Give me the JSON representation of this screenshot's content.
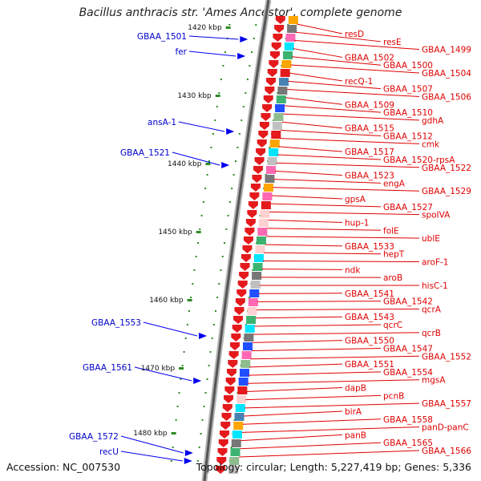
{
  "title": "Bacillus anthracis str. 'Ames Ancestor', complete genome",
  "footer": {
    "accession": "Accession: NC_007530",
    "topology": "Topology: circular; Length: 5,227,419 bp; Genes: 5,336"
  },
  "colors": {
    "backbone": "#8c8c8c",
    "forward_gene": "#e41a1c",
    "reverse_gene": "#0000ee",
    "tick": "#2e8b22",
    "right_label": "#e00000",
    "left_label": "#0000cc"
  },
  "scale_ticks": [
    "1420 kbp",
    "1430 kbp",
    "1440 kbp",
    "1450 kbp",
    "1460 kbp",
    "1470 kbp",
    "1480 kbp"
  ],
  "left_genes": [
    "GBAA_1501",
    "fer",
    "ansA-1",
    "GBAA_1521",
    "GBAA_1553",
    "GBAA_1561",
    "GBAA_1572",
    "recU"
  ],
  "right_genes": [
    "resD",
    "resE",
    "GBAA_1499",
    "GBAA_1502",
    "GBAA_1500",
    "GBAA_1504",
    "recQ-1",
    "GBAA_1507",
    "GBAA_1506",
    "GBAA_1509",
    "GBAA_1510",
    "gdhA",
    "GBAA_1515",
    "GBAA_1512",
    "cmk",
    "GBAA_1517",
    "GBAA_1520-rpsA",
    "GBAA_1522",
    "GBAA_1523",
    "engA",
    "GBAA_1529",
    "gpsA",
    "GBAA_1527",
    "spoIVA",
    "hup-1",
    "folE",
    "ublE",
    "GBAA_1533",
    "hepT",
    "aroF-1",
    "ndk",
    "aroB",
    "hisC-1",
    "GBAA_1541",
    "GBAA_1542",
    "qcrA",
    "GBAA_1543",
    "qcrC",
    "qcrB",
    "GBAA_1550",
    "GBAA_1547",
    "GBAA_1552",
    "GBAA_1551",
    "GBAA_1554",
    "mgsA",
    "dapB",
    "pcnB",
    "GBAA_1557",
    "birA",
    "GBAA_1558",
    "panD-panC",
    "panB",
    "GBAA_1565",
    "GBAA_1566"
  ]
}
